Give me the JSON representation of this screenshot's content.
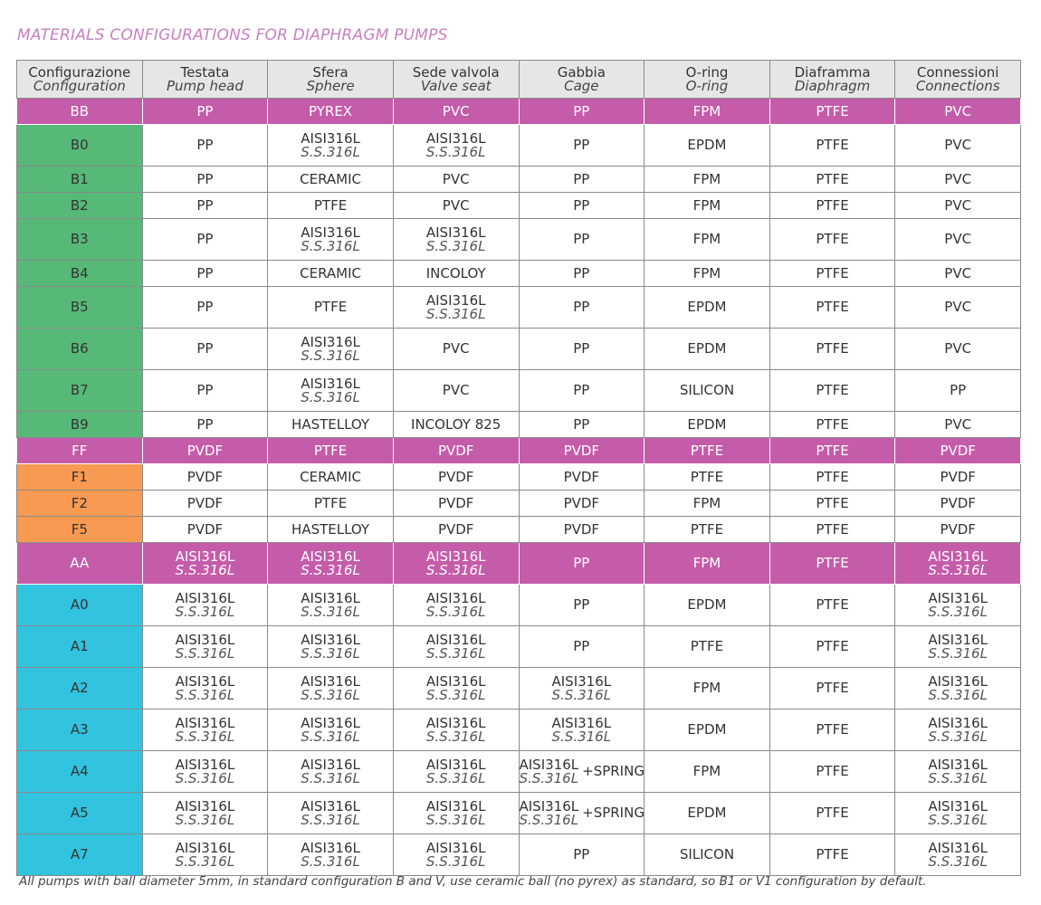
{
  "title": "MATERIALS CONFIGURATIONS FOR DIAPHRAGM PUMPS",
  "colors": {
    "magenta": "#c45ca9",
    "green": "#57b978",
    "orange": "#f99a52",
    "blue": "#31c3df",
    "header": "#e6e6e6"
  },
  "headers": [
    {
      "it": "Configurazione",
      "en": "Configuration"
    },
    {
      "it": "Testata",
      "en": "Pump head"
    },
    {
      "it": "Sfera",
      "en": "Sphere"
    },
    {
      "it": "Sede valvola",
      "en": "Valve seat"
    },
    {
      "it": "Gabbia",
      "en": "Cage"
    },
    {
      "it": "O-ring",
      "en": "O-ring"
    },
    {
      "it": "Diaframma",
      "en": "Diaphragm"
    },
    {
      "it": "Connessioni",
      "en": "Connections"
    }
  ],
  "rows": [
    {
      "group": "magenta",
      "cells": [
        {
          "t": "BB"
        },
        {
          "t": "PP"
        },
        {
          "t": "PYREX"
        },
        {
          "t": "PVC"
        },
        {
          "t": "PP"
        },
        {
          "t": "FPM"
        },
        {
          "t": "PTFE"
        },
        {
          "t": "PVC"
        }
      ]
    },
    {
      "group": "green",
      "cells": [
        {
          "t": "B0"
        },
        {
          "t": "PP"
        },
        {
          "t": "AISI316L",
          "s": "S.S.316L"
        },
        {
          "t": "AISI316L",
          "s": "S.S.316L"
        },
        {
          "t": "PP"
        },
        {
          "t": "EPDM"
        },
        {
          "t": "PTFE"
        },
        {
          "t": "PVC"
        }
      ]
    },
    {
      "group": "green",
      "cells": [
        {
          "t": "B1"
        },
        {
          "t": "PP"
        },
        {
          "t": "CERAMIC"
        },
        {
          "t": "PVC"
        },
        {
          "t": "PP"
        },
        {
          "t": "FPM"
        },
        {
          "t": "PTFE"
        },
        {
          "t": "PVC"
        }
      ]
    },
    {
      "group": "green",
      "cells": [
        {
          "t": "B2"
        },
        {
          "t": "PP"
        },
        {
          "t": "PTFE"
        },
        {
          "t": "PVC"
        },
        {
          "t": "PP"
        },
        {
          "t": "FPM"
        },
        {
          "t": "PTFE"
        },
        {
          "t": "PVC"
        }
      ]
    },
    {
      "group": "green",
      "cells": [
        {
          "t": "B3"
        },
        {
          "t": "PP"
        },
        {
          "t": "AISI316L",
          "s": "S.S.316L"
        },
        {
          "t": "AISI316L",
          "s": "S.S.316L"
        },
        {
          "t": "PP"
        },
        {
          "t": "FPM"
        },
        {
          "t": "PTFE"
        },
        {
          "t": "PVC"
        }
      ]
    },
    {
      "group": "green",
      "cells": [
        {
          "t": "B4"
        },
        {
          "t": "PP"
        },
        {
          "t": "CERAMIC"
        },
        {
          "t": "INCOLOY"
        },
        {
          "t": "PP"
        },
        {
          "t": "FPM"
        },
        {
          "t": "PTFE"
        },
        {
          "t": "PVC"
        }
      ]
    },
    {
      "group": "green",
      "cells": [
        {
          "t": "B5"
        },
        {
          "t": "PP"
        },
        {
          "t": "PTFE"
        },
        {
          "t": "AISI316L",
          "s": "S.S.316L"
        },
        {
          "t": "PP"
        },
        {
          "t": "EPDM"
        },
        {
          "t": "PTFE"
        },
        {
          "t": "PVC"
        }
      ]
    },
    {
      "group": "green",
      "cells": [
        {
          "t": "B6"
        },
        {
          "t": "PP"
        },
        {
          "t": "AISI316L",
          "s": "S.S.316L"
        },
        {
          "t": "PVC"
        },
        {
          "t": "PP"
        },
        {
          "t": "EPDM"
        },
        {
          "t": "PTFE"
        },
        {
          "t": "PVC"
        }
      ]
    },
    {
      "group": "green",
      "cells": [
        {
          "t": "B7"
        },
        {
          "t": "PP"
        },
        {
          "t": "AISI316L",
          "s": "S.S.316L"
        },
        {
          "t": "PVC"
        },
        {
          "t": "PP"
        },
        {
          "t": "SILICON"
        },
        {
          "t": "PTFE"
        },
        {
          "t": "PP"
        }
      ]
    },
    {
      "group": "green",
      "cells": [
        {
          "t": "B9"
        },
        {
          "t": "PP"
        },
        {
          "t": "HASTELLOY"
        },
        {
          "t": "INCOLOY 825"
        },
        {
          "t": "PP"
        },
        {
          "t": "EPDM"
        },
        {
          "t": "PTFE"
        },
        {
          "t": "PVC"
        }
      ]
    },
    {
      "group": "magenta",
      "cells": [
        {
          "t": "FF"
        },
        {
          "t": "PVDF"
        },
        {
          "t": "PTFE"
        },
        {
          "t": "PVDF"
        },
        {
          "t": "PVDF"
        },
        {
          "t": "PTFE"
        },
        {
          "t": "PTFE"
        },
        {
          "t": "PVDF"
        }
      ]
    },
    {
      "group": "orange",
      "cells": [
        {
          "t": "F1"
        },
        {
          "t": "PVDF"
        },
        {
          "t": "CERAMIC"
        },
        {
          "t": "PVDF"
        },
        {
          "t": "PVDF"
        },
        {
          "t": "PTFE"
        },
        {
          "t": "PTFE"
        },
        {
          "t": "PVDF"
        }
      ]
    },
    {
      "group": "orange",
      "cells": [
        {
          "t": "F2"
        },
        {
          "t": "PVDF"
        },
        {
          "t": "PTFE"
        },
        {
          "t": "PVDF"
        },
        {
          "t": "PVDF"
        },
        {
          "t": "FPM"
        },
        {
          "t": "PTFE"
        },
        {
          "t": "PVDF"
        }
      ]
    },
    {
      "group": "orange",
      "cells": [
        {
          "t": "F5"
        },
        {
          "t": "PVDF"
        },
        {
          "t": "HASTELLOY"
        },
        {
          "t": "PVDF"
        },
        {
          "t": "PVDF"
        },
        {
          "t": "PTFE"
        },
        {
          "t": "PTFE"
        },
        {
          "t": "PVDF"
        }
      ]
    },
    {
      "group": "magenta",
      "cells": [
        {
          "t": "AA"
        },
        {
          "t": "AISI316L",
          "s": "S.S.316L"
        },
        {
          "t": "AISI316L",
          "s": "S.S.316L"
        },
        {
          "t": "AISI316L",
          "s": "S.S.316L"
        },
        {
          "t": "PP"
        },
        {
          "t": "FPM"
        },
        {
          "t": "PTFE"
        },
        {
          "t": "AISI316L",
          "s": "S.S.316L"
        }
      ]
    },
    {
      "group": "blue",
      "cells": [
        {
          "t": "A0"
        },
        {
          "t": "AISI316L",
          "s": "S.S.316L"
        },
        {
          "t": "AISI316L",
          "s": "S.S.316L"
        },
        {
          "t": "AISI316L",
          "s": "S.S.316L"
        },
        {
          "t": "PP"
        },
        {
          "t": "EPDM"
        },
        {
          "t": "PTFE"
        },
        {
          "t": "AISI316L",
          "s": "S.S.316L"
        }
      ]
    },
    {
      "group": "blue",
      "cells": [
        {
          "t": "A1"
        },
        {
          "t": "AISI316L",
          "s": "S.S.316L"
        },
        {
          "t": "AISI316L",
          "s": "S.S.316L"
        },
        {
          "t": "AISI316L",
          "s": "S.S.316L"
        },
        {
          "t": "PP"
        },
        {
          "t": "PTFE"
        },
        {
          "t": "PTFE"
        },
        {
          "t": "AISI316L",
          "s": "S.S.316L"
        }
      ]
    },
    {
      "group": "blue",
      "cells": [
        {
          "t": "A2"
        },
        {
          "t": "AISI316L",
          "s": "S.S.316L"
        },
        {
          "t": "AISI316L",
          "s": "S.S.316L"
        },
        {
          "t": "AISI316L",
          "s": "S.S.316L"
        },
        {
          "t": "AISI316L",
          "s": "S.S.316L"
        },
        {
          "t": "FPM"
        },
        {
          "t": "PTFE"
        },
        {
          "t": "AISI316L",
          "s": "S.S.316L"
        }
      ]
    },
    {
      "group": "blue",
      "cells": [
        {
          "t": "A3"
        },
        {
          "t": "AISI316L",
          "s": "S.S.316L"
        },
        {
          "t": "AISI316L",
          "s": "S.S.316L"
        },
        {
          "t": "AISI316L",
          "s": "S.S.316L"
        },
        {
          "t": "AISI316L",
          "s": "S.S.316L"
        },
        {
          "t": "EPDM"
        },
        {
          "t": "PTFE"
        },
        {
          "t": "AISI316L",
          "s": "S.S.316L"
        }
      ]
    },
    {
      "group": "blue",
      "cells": [
        {
          "t": "A4"
        },
        {
          "t": "AISI316L",
          "s": "S.S.316L"
        },
        {
          "t": "AISI316L",
          "s": "S.S.316L"
        },
        {
          "t": "AISI316L",
          "s": "S.S.316L"
        },
        {
          "t": "AISI316L",
          "s": "S.S.316L",
          "x": "+SPRING"
        },
        {
          "t": "FPM"
        },
        {
          "t": "PTFE"
        },
        {
          "t": "AISI316L",
          "s": "S.S.316L"
        }
      ]
    },
    {
      "group": "blue",
      "cells": [
        {
          "t": "A5"
        },
        {
          "t": "AISI316L",
          "s": "S.S.316L"
        },
        {
          "t": "AISI316L",
          "s": "S.S.316L"
        },
        {
          "t": "AISI316L",
          "s": "S.S.316L"
        },
        {
          "t": "AISI316L",
          "s": "S.S.316L",
          "x": "+SPRING"
        },
        {
          "t": "EPDM"
        },
        {
          "t": "PTFE"
        },
        {
          "t": "AISI316L",
          "s": "S.S.316L"
        }
      ]
    },
    {
      "group": "blue",
      "cells": [
        {
          "t": "A7"
        },
        {
          "t": "AISI316L",
          "s": "S.S.316L"
        },
        {
          "t": "AISI316L",
          "s": "S.S.316L"
        },
        {
          "t": "AISI316L",
          "s": "S.S.316L"
        },
        {
          "t": "PP"
        },
        {
          "t": "SILICON"
        },
        {
          "t": "PTFE"
        },
        {
          "t": "AISI316L",
          "s": "S.S.316L"
        }
      ]
    }
  ],
  "note": "All pumps with ball diameter 5mm, in standard configuration B and V, use ceramic ball (no pyrex) as standard, so B1 or V1 configuration by default."
}
